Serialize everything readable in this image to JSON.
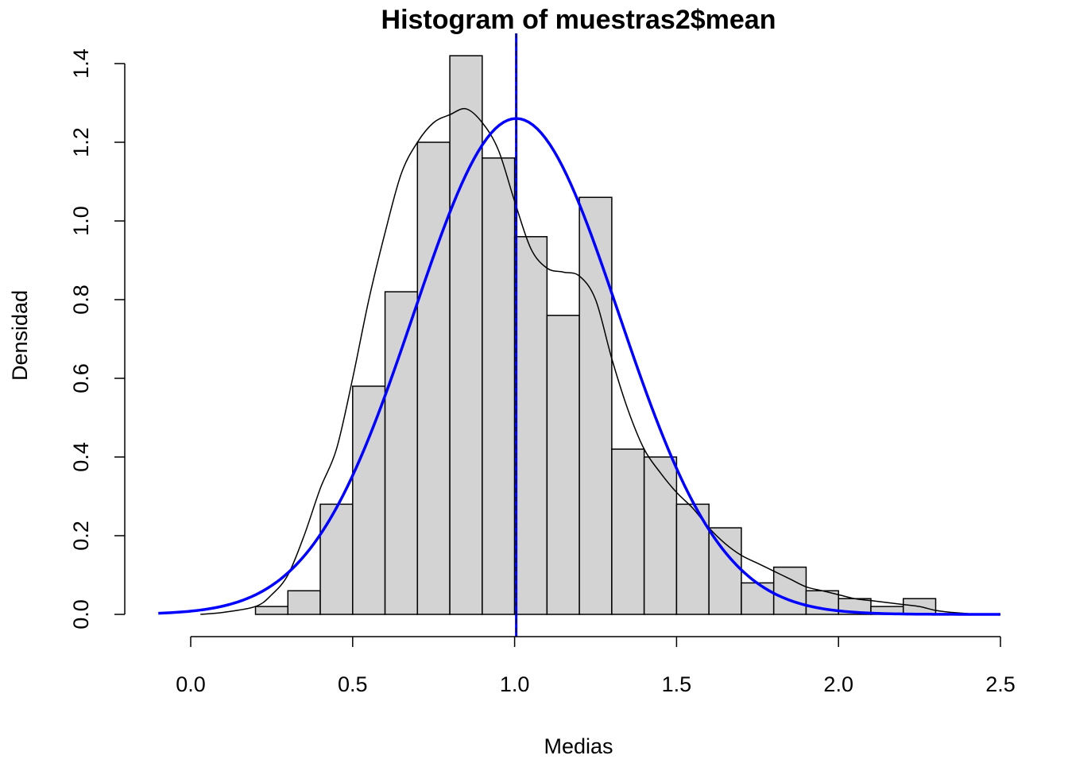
{
  "chart_data": {
    "type": "bar",
    "title": "Histogram of muestras2$mean",
    "xlabel": "Medias",
    "ylabel": "Densidad",
    "xlim": [
      -0.1,
      2.5
    ],
    "ylim": [
      0,
      1.4
    ],
    "x_ticks": [
      0.0,
      0.5,
      1.0,
      1.5,
      2.0,
      2.5
    ],
    "x_tick_labels": [
      "0.0",
      "0.5",
      "1.0",
      "1.5",
      "2.0",
      "2.5"
    ],
    "y_ticks": [
      0.0,
      0.2,
      0.4,
      0.6,
      0.8,
      1.0,
      1.2,
      1.4
    ],
    "y_tick_labels": [
      "0.0",
      "0.2",
      "0.4",
      "0.6",
      "0.8",
      "1.0",
      "1.2",
      "1.4"
    ],
    "bin_width": 0.1,
    "bins": [
      {
        "start": 0.2,
        "end": 0.3,
        "density": 0.02
      },
      {
        "start": 0.3,
        "end": 0.4,
        "density": 0.06
      },
      {
        "start": 0.4,
        "end": 0.5,
        "density": 0.28
      },
      {
        "start": 0.5,
        "end": 0.6,
        "density": 0.58
      },
      {
        "start": 0.6,
        "end": 0.7,
        "density": 0.82
      },
      {
        "start": 0.7,
        "end": 0.8,
        "density": 1.2
      },
      {
        "start": 0.8,
        "end": 0.9,
        "density": 1.42
      },
      {
        "start": 0.9,
        "end": 1.0,
        "density": 1.16
      },
      {
        "start": 1.0,
        "end": 1.1,
        "density": 0.96
      },
      {
        "start": 1.1,
        "end": 1.2,
        "density": 0.76
      },
      {
        "start": 1.2,
        "end": 1.3,
        "density": 1.06
      },
      {
        "start": 1.3,
        "end": 1.4,
        "density": 0.42
      },
      {
        "start": 1.4,
        "end": 1.5,
        "density": 0.4
      },
      {
        "start": 1.5,
        "end": 1.6,
        "density": 0.28
      },
      {
        "start": 1.6,
        "end": 1.7,
        "density": 0.22
      },
      {
        "start": 1.7,
        "end": 1.8,
        "density": 0.08
      },
      {
        "start": 1.8,
        "end": 1.9,
        "density": 0.12
      },
      {
        "start": 1.9,
        "end": 2.0,
        "density": 0.06
      },
      {
        "start": 2.0,
        "end": 2.1,
        "density": 0.04
      },
      {
        "start": 2.1,
        "end": 2.2,
        "density": 0.02
      },
      {
        "start": 2.2,
        "end": 2.3,
        "density": 0.04
      }
    ],
    "series": [
      {
        "name": "kernel density",
        "color": "#000000",
        "x": [
          0.03,
          0.1,
          0.2,
          0.25,
          0.3,
          0.35,
          0.4,
          0.45,
          0.5,
          0.55,
          0.6,
          0.65,
          0.7,
          0.75,
          0.8,
          0.85,
          0.9,
          0.95,
          1.0,
          1.05,
          1.1,
          1.15,
          1.2,
          1.25,
          1.3,
          1.35,
          1.4,
          1.45,
          1.5,
          1.55,
          1.6,
          1.65,
          1.7,
          1.75,
          1.8,
          1.85,
          1.9,
          1.95,
          2.0,
          2.05,
          2.1,
          2.15,
          2.2,
          2.25,
          2.3,
          2.35,
          2.4
        ],
        "y": [
          0.0,
          0.005,
          0.02,
          0.05,
          0.1,
          0.2,
          0.32,
          0.42,
          0.6,
          0.8,
          0.97,
          1.12,
          1.2,
          1.25,
          1.27,
          1.285,
          1.25,
          1.18,
          1.05,
          0.93,
          0.88,
          0.87,
          0.86,
          0.8,
          0.65,
          0.52,
          0.42,
          0.36,
          0.31,
          0.27,
          0.22,
          0.18,
          0.15,
          0.13,
          0.11,
          0.09,
          0.07,
          0.06,
          0.05,
          0.04,
          0.035,
          0.03,
          0.025,
          0.02,
          0.01,
          0.005,
          0.002
        ]
      },
      {
        "name": "normal density",
        "color": "#0000ff",
        "type": "normal",
        "mean": 1.005,
        "sd": 0.3165,
        "x_range": [
          -0.1,
          2.5
        ]
      }
    ],
    "vlines": [
      {
        "x": 1.005,
        "color": "#0000ff",
        "style": "solid"
      },
      {
        "x": 1.005,
        "color": "#000080",
        "style": "dashed"
      }
    ]
  }
}
